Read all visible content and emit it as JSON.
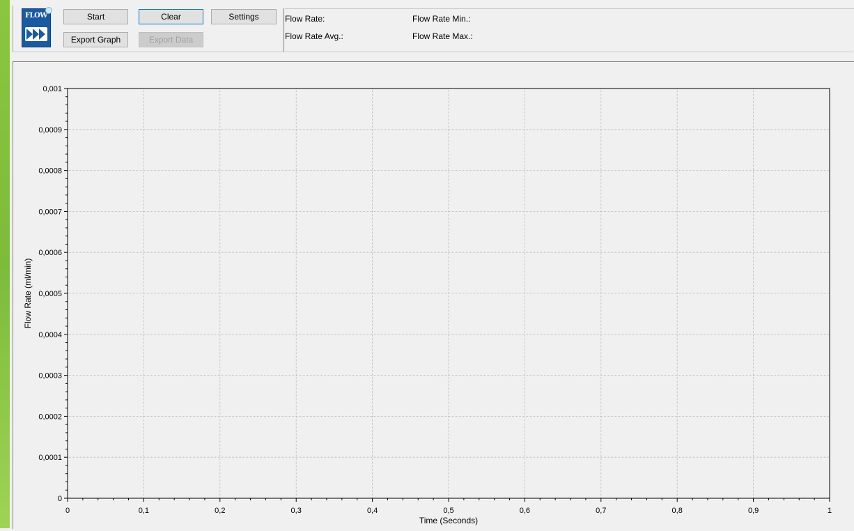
{
  "toolbar": {
    "logo_text": "FLOW",
    "start_label": "Start",
    "clear_label": "Clear",
    "settings_label": "Settings",
    "export_graph_label": "Export Graph",
    "export_data_label": "Export Data"
  },
  "stats": {
    "flow_rate_label": "Flow Rate:",
    "flow_rate_avg_label": "Flow Rate Avg.:",
    "flow_rate_min_label": "Flow Rate Min.:",
    "flow_rate_max_label": "Flow Rate Max.:"
  },
  "colors": {
    "accent": "#0078d7",
    "logo_blue": "#1a5aa0",
    "desktop_green": "#8cc63f"
  },
  "chart_data": {
    "type": "line",
    "series": [],
    "xlabel": "Time (Seconds)",
    "ylabel": "Flow Rate (ml/min)",
    "xlim": [
      0,
      1
    ],
    "ylim": [
      0,
      0.001
    ],
    "x_ticks": [
      "0",
      "0,1",
      "0,2",
      "0,3",
      "0,4",
      "0,5",
      "0,6",
      "0,7",
      "0,8",
      "0,9",
      "1"
    ],
    "y_ticks": [
      "0",
      "0,0001",
      "0,0002",
      "0,0003",
      "0,0004",
      "0,0005",
      "0,0006",
      "0,0007",
      "0,0008",
      "0,0009",
      "0,001"
    ],
    "grid": true
  }
}
